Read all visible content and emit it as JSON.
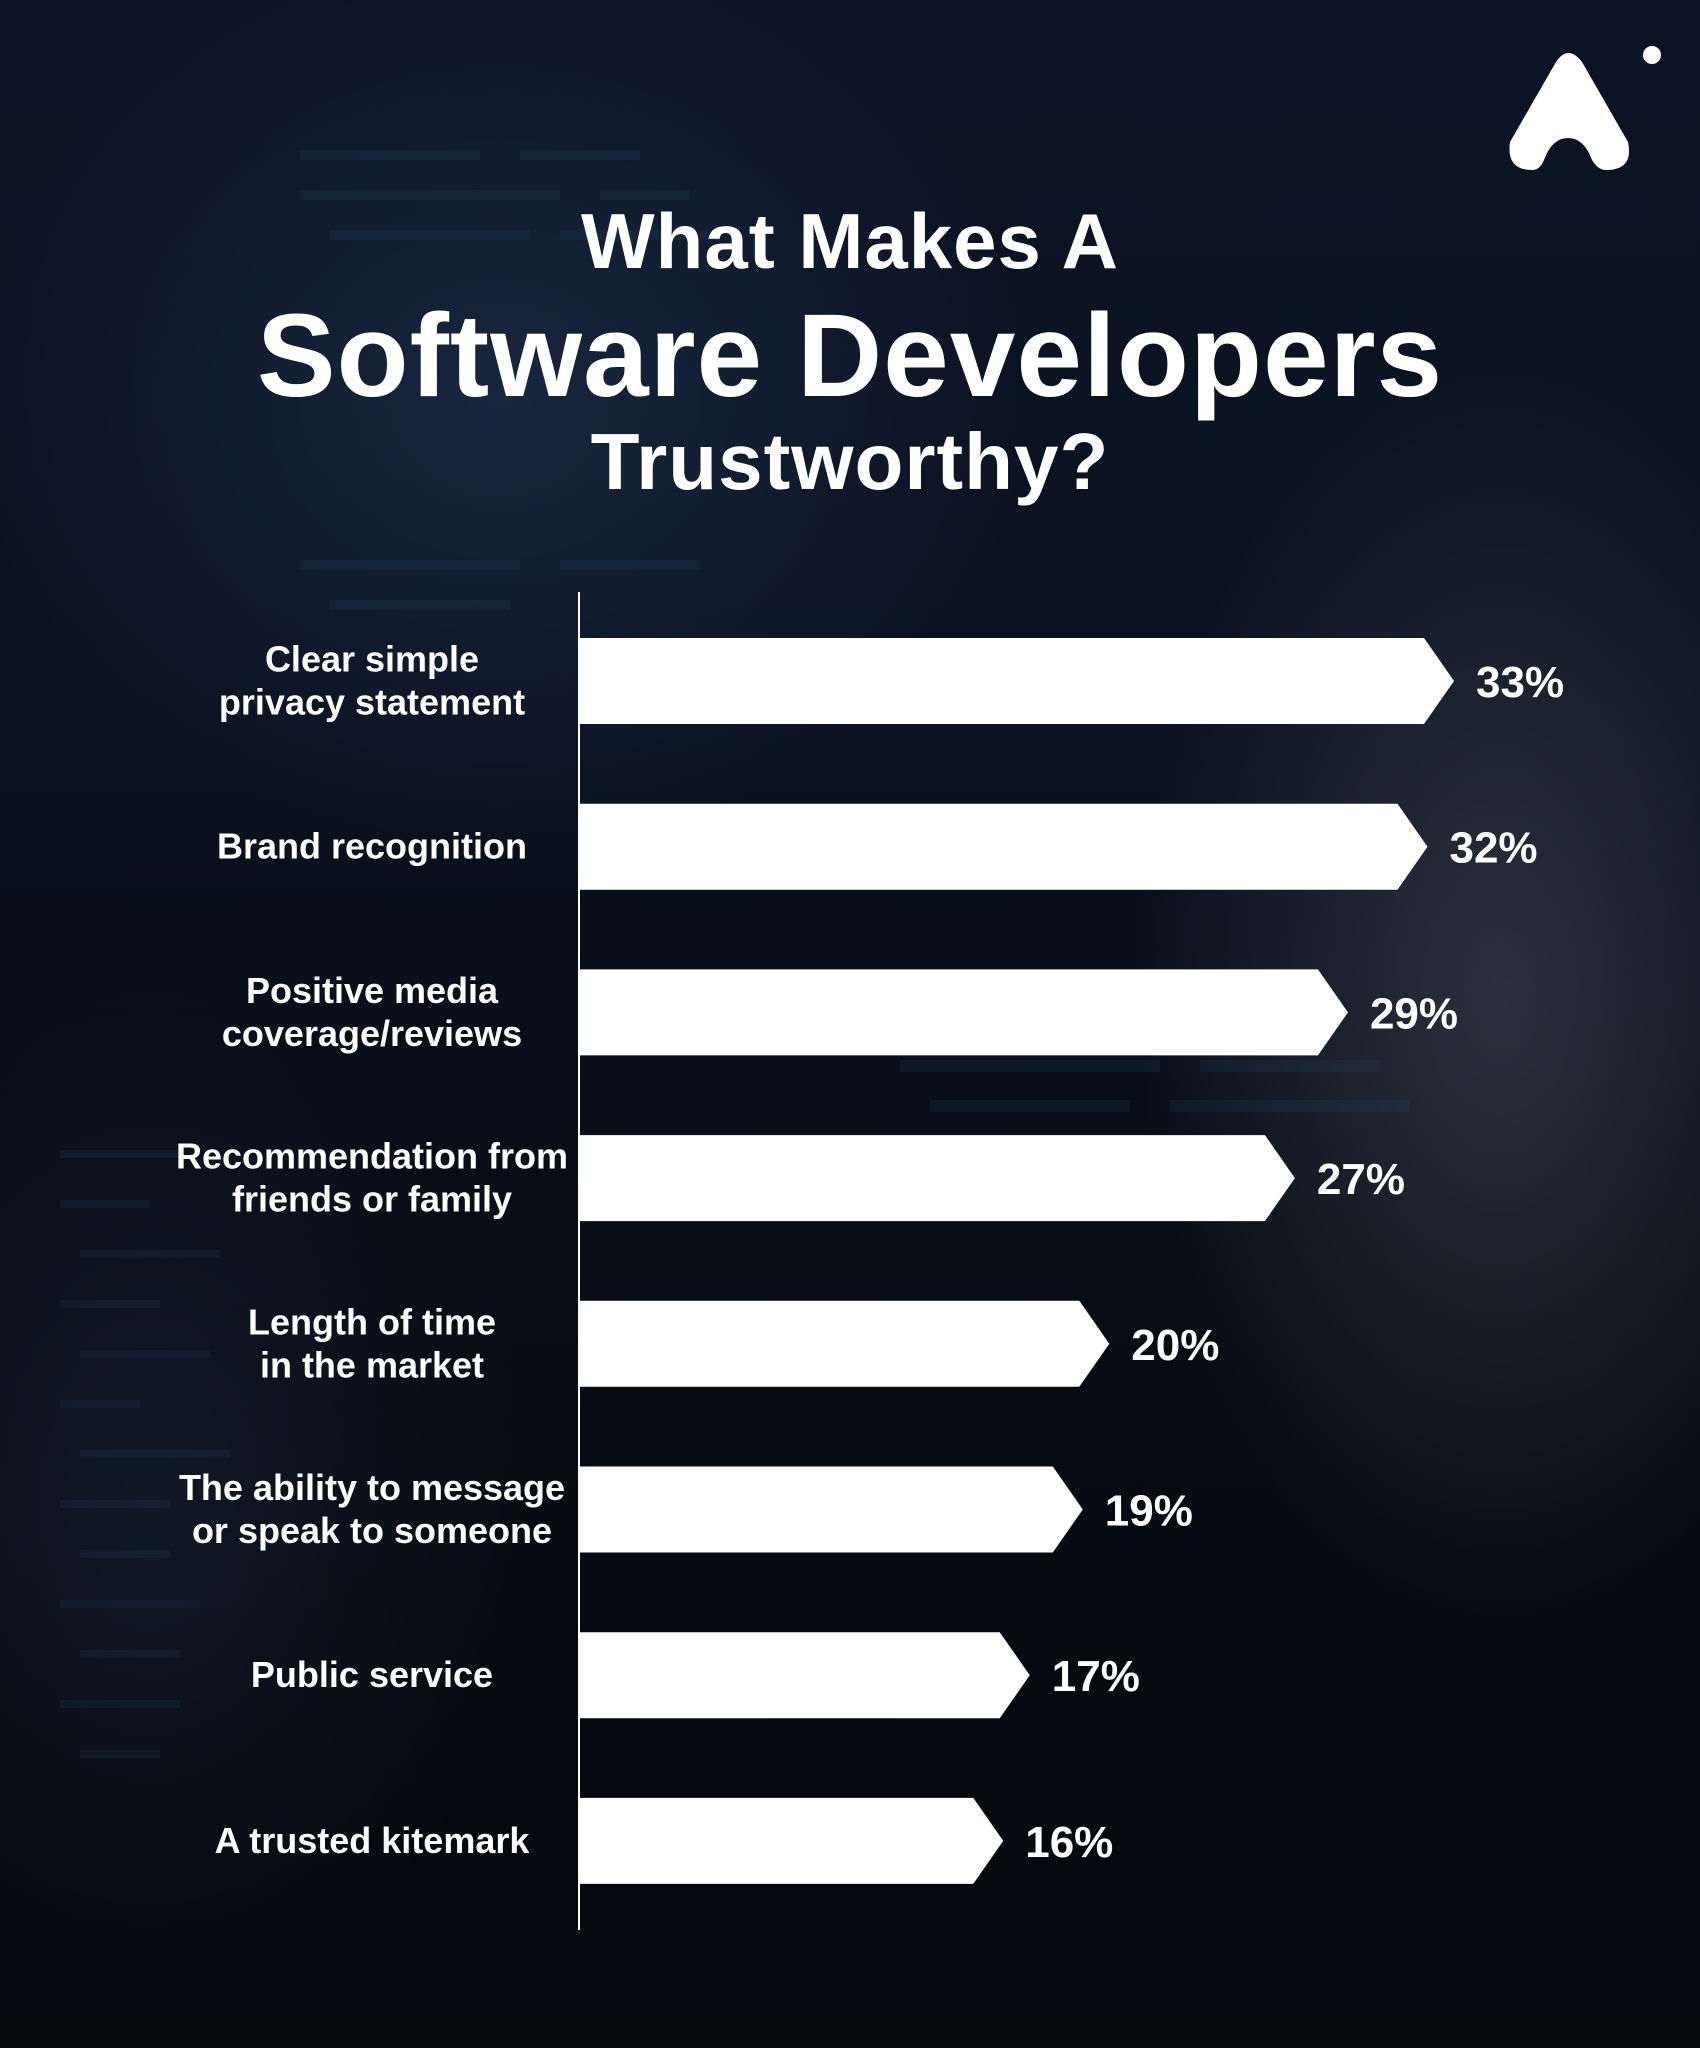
{
  "header": {
    "title_line1": "What Makes A",
    "title_line2": "Software Developers",
    "title_line3": "Trustworthy?"
  },
  "brand": {
    "logo_icon": "brand-logo-icon"
  },
  "colors": {
    "bar": "#ffffff",
    "text": "#ffffff",
    "axis": "#ffffff"
  },
  "chart_data": {
    "type": "bar",
    "orientation": "horizontal",
    "title": "What Makes A Software Developers Trustworthy?",
    "categories": [
      [
        "Clear simple",
        "privacy statement"
      ],
      [
        "Brand recognition"
      ],
      [
        "Positive media",
        "coverage/reviews"
      ],
      [
        "Recommendation from",
        "friends or family"
      ],
      [
        "Length of time",
        "in the market"
      ],
      [
        "The ability to message",
        "or speak to someone"
      ],
      [
        "Public service"
      ],
      [
        "A trusted kitemark"
      ]
    ],
    "values": [
      33,
      32,
      29,
      27,
      20,
      19,
      17,
      16
    ],
    "value_labels": [
      "33%",
      "32%",
      "29%",
      "27%",
      "20%",
      "19%",
      "17%",
      "16%"
    ],
    "xlim": [
      0,
      35
    ],
    "grid": false,
    "legend": "none"
  }
}
